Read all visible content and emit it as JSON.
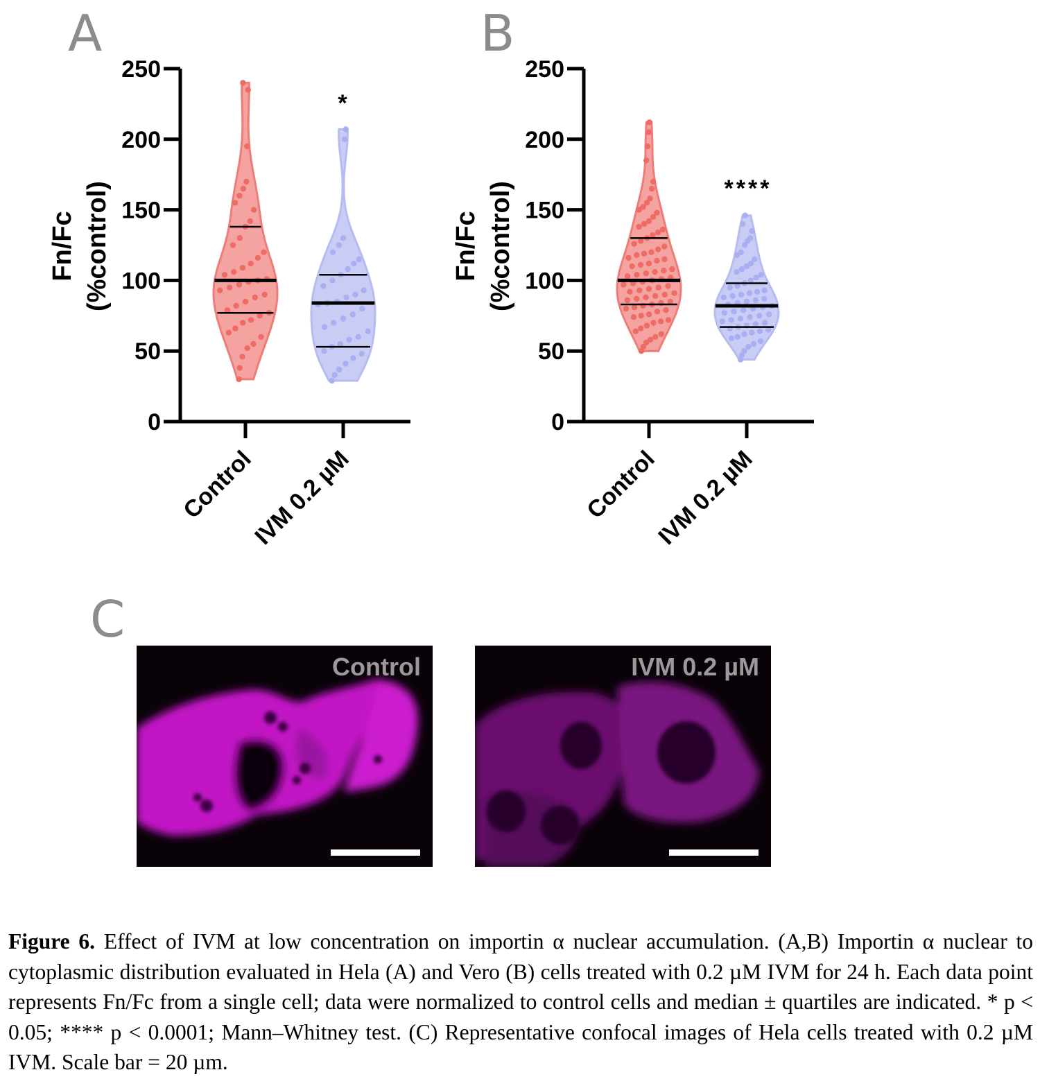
{
  "panels": {
    "a_letter": "A",
    "b_letter": "B",
    "c_letter": "C"
  },
  "chart_data": [
    {
      "type": "violin",
      "panel": "A",
      "ylabel_line1": "Fn/Fc",
      "ylabel_line2": "(%control)",
      "ylim": [
        0,
        250
      ],
      "yticks": [
        "0",
        "50",
        "100",
        "150",
        "200",
        "250"
      ],
      "categories": [
        "Control",
        "IVM 0.2 µM"
      ],
      "significance": [
        "",
        "*"
      ],
      "colors": {
        "fill": [
          "#f4a3a0",
          "#c9cdf6"
        ],
        "stroke": [
          "#ec7d78",
          "#b6bbf0"
        ],
        "dots": [
          "#ee6b66",
          "#a9aff0"
        ]
      },
      "series": [
        {
          "median": 100,
          "q1": 77,
          "q3": 138,
          "min": 30,
          "max": 240,
          "values": [
            30,
            38,
            46,
            52,
            55,
            60,
            63,
            66,
            70,
            72,
            75,
            77,
            79,
            82,
            85,
            88,
            90,
            93,
            95,
            97,
            99,
            100,
            101,
            104,
            106,
            109,
            112,
            116,
            120,
            125,
            130,
            138,
            142,
            150,
            155,
            160,
            165,
            170,
            195,
            235,
            240
          ]
        },
        {
          "median": 84,
          "q1": 53,
          "q3": 104,
          "min": 29,
          "max": 207,
          "values": [
            29,
            33,
            37,
            41,
            45,
            48,
            50,
            53,
            55,
            58,
            60,
            64,
            67,
            70,
            73,
            76,
            80,
            83,
            84,
            85,
            88,
            90,
            93,
            96,
            100,
            104,
            108,
            112,
            115,
            120,
            125,
            130,
            200,
            207
          ]
        }
      ]
    },
    {
      "type": "violin",
      "panel": "B",
      "ylabel_line1": "Fn/Fc",
      "ylabel_line2": "(%control)",
      "ylim": [
        0,
        250
      ],
      "yticks": [
        "0",
        "50",
        "100",
        "150",
        "200",
        "250"
      ],
      "categories": [
        "Control",
        "IVM 0.2 µM"
      ],
      "significance": [
        "",
        "****"
      ],
      "colors": {
        "fill": [
          "#f4a3a0",
          "#c9cdf6"
        ],
        "stroke": [
          "#ec7d78",
          "#b6bbf0"
        ],
        "dots": [
          "#ee6b66",
          "#a9aff0"
        ]
      },
      "series": [
        {
          "median": 100,
          "q1": 83,
          "q3": 130,
          "min": 50,
          "max": 212,
          "values": [
            50,
            53,
            56,
            58,
            60,
            62,
            64,
            66,
            68,
            70,
            71,
            72,
            74,
            75,
            76,
            78,
            79,
            80,
            81,
            82,
            83,
            84,
            85,
            86,
            87,
            88,
            89,
            90,
            91,
            92,
            93,
            94,
            95,
            96,
            97,
            98,
            99,
            100,
            101,
            102,
            103,
            104,
            105,
            106,
            107,
            108,
            110,
            111,
            112,
            114,
            115,
            116,
            118,
            119,
            120,
            122,
            124,
            126,
            128,
            130,
            132,
            134,
            136,
            138,
            140,
            142,
            145,
            148,
            150,
            152,
            155,
            158,
            165,
            170,
            185,
            195,
            205,
            212
          ]
        },
        {
          "median": 82,
          "q1": 67,
          "q3": 98,
          "min": 44,
          "max": 146,
          "values": [
            44,
            47,
            50,
            53,
            55,
            57,
            59,
            60,
            62,
            63,
            64,
            65,
            66,
            67,
            68,
            69,
            70,
            71,
            72,
            73,
            74,
            75,
            76,
            77,
            78,
            79,
            80,
            81,
            82,
            83,
            84,
            85,
            86,
            87,
            88,
            89,
            90,
            91,
            92,
            93,
            95,
            96,
            98,
            100,
            102,
            104,
            106,
            108,
            110,
            112,
            115,
            118,
            120,
            125,
            128,
            130,
            135,
            140,
            146
          ]
        }
      ]
    }
  ],
  "images": {
    "left_label": "Control",
    "right_label": "IVM 0.2 µM",
    "colors": {
      "background": "#0a0209",
      "cell_bright": "#c215c6",
      "cell_dim": "#6a0d6e",
      "scale_bar": "#ffffff"
    }
  },
  "caption": {
    "figure_label": "Figure 6.",
    "text": " Effect of IVM at low concentration on importin α nuclear accumulation. (A,B) Importin α nuclear to cytoplasmic distribution evaluated in Hela (A) and Vero (B) cells treated with 0.2 µM IVM for 24 h. Each data point represents Fn/Fc from a single cell; data were normalized to control cells and median ± quartiles are indicated. * p < 0.05; **** p < 0.0001; Mann–Whitney test. (C) Representative confocal images of Hela cells treated with 0.2 µM IVM. Scale bar = 20 µm."
  }
}
